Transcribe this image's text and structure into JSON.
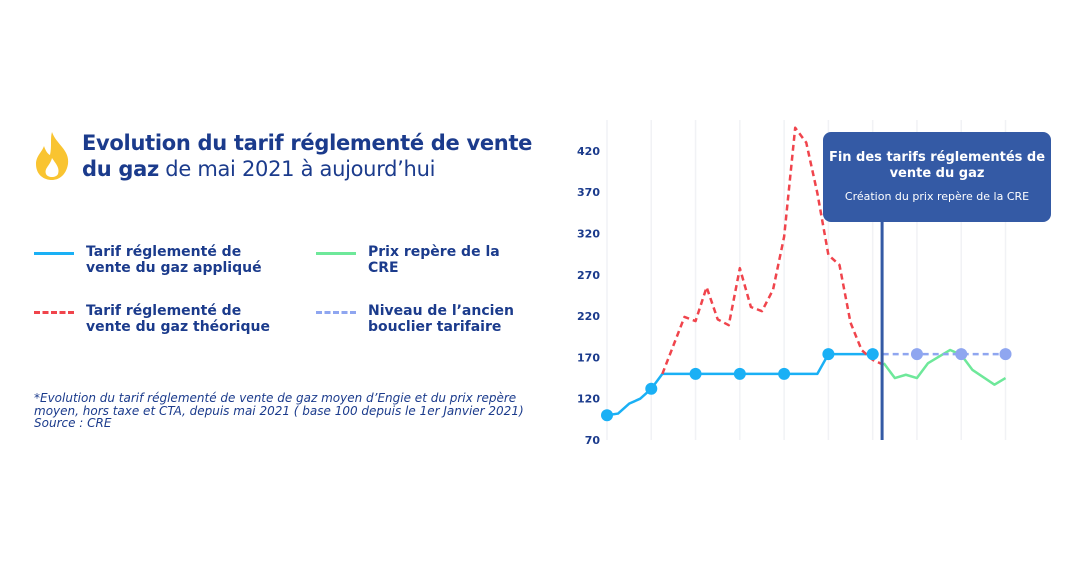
{
  "header": {
    "title_bold": "Evolution du tarif réglementé de vente du gaz",
    "title_rest": " de mai 2021 à aujourd’hui",
    "icon": "flame-icon"
  },
  "legend": [
    {
      "label": "Tarif réglementé de vente du gaz appliqué",
      "color": "#1ab0f5",
      "style": "solid"
    },
    {
      "label": "Prix repère de la CRE",
      "color": "#6ee89a",
      "style": "solid"
    },
    {
      "label": "Tarif réglementé de vente du gaz théorique",
      "color": "#f0444c",
      "style": "dashed"
    },
    {
      "label": "Niveau de l’ancien bouclier tarifaire",
      "color": "#8fa6f0",
      "style": "dashed"
    }
  ],
  "note": {
    "text": "*Evolution du tarif réglementé de vente de gaz moyen d’Engie et du prix repère moyen, hors taxe et CTA, depuis mai 2021 ( base 100 depuis le 1er Janvier 2021)",
    "source": "Source : CRE"
  },
  "callout": {
    "title": "Fin des tarifs réglementés de vente du gaz",
    "subtitle": "Création du prix repère de la CRE",
    "color": "#345aa5"
  },
  "chart_data": {
    "type": "line",
    "ylim": [
      70,
      450
    ],
    "yticks": [
      70,
      120,
      170,
      220,
      270,
      320,
      370,
      420
    ],
    "xlim": [
      0,
      36
    ],
    "grid": "vertical",
    "marker_x": 24.85,
    "series": [
      {
        "key": "applied",
        "color": "#1ab0f5",
        "dash": false,
        "x": [
          0,
          1,
          2,
          3,
          4,
          5,
          19,
          20,
          24
        ],
        "y": [
          100,
          102,
          114,
          120,
          132,
          150,
          150,
          174,
          174
        ],
        "markers": [
          0,
          4,
          8,
          12,
          16,
          20,
          24
        ]
      },
      {
        "key": "theoretical",
        "color": "#f0444c",
        "dash": true,
        "x": [
          5,
          7,
          8,
          9,
          10,
          11,
          12,
          13,
          14,
          15,
          16,
          17,
          18,
          19,
          20,
          21,
          22,
          23,
          24,
          25
        ],
        "y": [
          150,
          219,
          214,
          255,
          216,
          209,
          278,
          231,
          226,
          252,
          316,
          448,
          430,
          369,
          294,
          282,
          212,
          179,
          167,
          161
        ],
        "markers": []
      },
      {
        "key": "cre",
        "color": "#6ee89a",
        "dash": false,
        "x": [
          25,
          26,
          27,
          28,
          29,
          31,
          32,
          33,
          35,
          36
        ],
        "y": [
          163,
          145,
          149,
          145,
          163,
          179,
          173,
          155,
          137,
          145
        ],
        "markers": []
      },
      {
        "key": "shield",
        "color": "#8fa6f0",
        "dash": true,
        "x": [
          24,
          36
        ],
        "y": [
          174,
          174
        ],
        "markers": [
          28,
          32,
          36
        ]
      }
    ]
  }
}
